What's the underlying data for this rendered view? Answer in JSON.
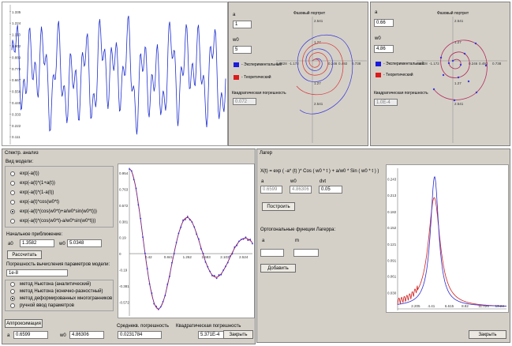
{
  "signal_plot": {
    "y_ticks": [
      "1.335",
      "1.224",
      "1.113",
      "1.002",
      "0.889",
      "0.778",
      "0.667",
      "0.556",
      "0.445",
      "0.333",
      "0.222",
      "0.111"
    ],
    "y_values": [
      1.335,
      1.224,
      1.113,
      1.002,
      0.889,
      0.778,
      0.667,
      0.556,
      0.445,
      0.333,
      0.222,
      0.111
    ],
    "color": "#1f2fd0"
  },
  "phase_panel_1": {
    "a_label": "a",
    "a_value": "1",
    "w0_label": "w0",
    "w0_value": "5",
    "legend_exp": "- Экспериментальный",
    "legend_theory": "- Теоретический",
    "error_label": "Квадратическая погрешность",
    "error_value": "0.072",
    "plot_title": "Фазовый портрет",
    "x_ticks": [
      "0.9328",
      "-1.172",
      "0.246",
      "0.492",
      "0.738"
    ],
    "y_ticks": [
      "2.541",
      "1.27",
      "1.27",
      "2.541"
    ]
  },
  "phase_panel_2": {
    "a_label": "a",
    "a_value": "0.66",
    "w0_label": "w0",
    "w0_value": "4.86",
    "legend_exp": "- Экспериментальный",
    "legend_theory": "- Теоретический",
    "error_label": "Квадратическая погрешность",
    "error_value": "1.0E-4",
    "plot_title": "Фазовый портрет",
    "x_ticks": [
      "0.5328",
      "-1.172",
      "0.246",
      "0.492",
      "0.738"
    ],
    "y_ticks": [
      "2.541",
      "1.27",
      "1.27",
      "2.541"
    ]
  },
  "spectrum_window": {
    "title": "Спектр. анализ",
    "model_group_label": "Вид модели:",
    "models": [
      {
        "label": "exp(-a(t))",
        "selected": false
      },
      {
        "label": "exp(-a(t)*(1+a(t))",
        "selected": false
      },
      {
        "label": "exp(-a(t)*(1-a(t))",
        "selected": false
      },
      {
        "label": "exp(-a(t)*cos(w0*t)",
        "selected": false
      },
      {
        "label": "exp(-a(t)*(cos(w0*t)+a/w0*sin(w0*t)))",
        "selected": true
      },
      {
        "label": "exp(-a(t)*(cos(w0*t)-a/w0*sin(w0*t)))",
        "selected": false
      }
    ],
    "init_label": "Начальное приближение:",
    "a0_label": "a0",
    "a0_value": "1.3582",
    "w0_label": "w0",
    "w0_value": "5.0348",
    "calc_button": "Рассчитать",
    "tolerance_label": "Погрешность вычисления параметров модели:",
    "tolerance_value": "1e-8",
    "methods": [
      {
        "label": "метод Ньютона (аналитический)",
        "selected": false
      },
      {
        "label": "метод Ньютона (конечно-разностный)",
        "selected": false
      },
      {
        "label": "метод деформированных многогранников",
        "selected": true
      },
      {
        "label": "ручной ввод параметров",
        "selected": false
      }
    ],
    "approx_button": "Аппроксимация",
    "a_label": "a",
    "a_value": "0.6599",
    "w0_res_label": "w0",
    "w0_res_value": "4.86306",
    "mean_err_label": "Среднекв. погрешность",
    "mean_err_value": "0.0231784",
    "quad_err_label": "Квадратическая погрешность",
    "quad_err_value": "5.371E-4",
    "close_button": "Закрыть",
    "chart_data": {
      "type": "line",
      "y_ticks": [
        "0.954",
        "0.763",
        "0.572",
        "0.381",
        "0.19",
        "0",
        "-0.19",
        "-0.381",
        "-0.572"
      ],
      "x_ticks": [
        "0.42",
        "0.841",
        "1.262",
        "1.683",
        "2.103",
        "2.524"
      ],
      "ylim": [
        -0.7,
        1.0
      ],
      "xlim": [
        0,
        2.75
      ],
      "series": [
        {
          "color": "#d01c1c"
        },
        {
          "color": "#3030d8"
        }
      ]
    }
  },
  "laguerre_window": {
    "title": "Лагер",
    "formula": "X(t) = exp ( -a* (t) )* Cos ( w0 * t ) + a/w0 * Sin ( w0 * t ) )",
    "a_label": "a",
    "a_value": "0.6599",
    "w0_label": "w0",
    "w0_value": "4.86306",
    "dvt_label": "dvt",
    "dvt_value": "0.05",
    "build_button": "Построить",
    "ortho_label": "Ортогональные функции Лагерра:",
    "fa_label": "a",
    "fm_label": "m",
    "add_button": "Добавить",
    "close_button": "Закрыть",
    "chart_data": {
      "type": "line",
      "y_ticks": [
        "0.243",
        "0.213",
        "0.182",
        "0.152",
        "0.121",
        "0.091",
        "0.061",
        "0.030"
      ],
      "x_ticks": [
        "2.205",
        "4.41",
        "6.615",
        "8.82",
        "11.025",
        "13.23"
      ],
      "ylim": [
        0,
        0.26
      ],
      "xlim": [
        0,
        14.3
      ],
      "series": [
        {
          "color": "#2b2bd0"
        },
        {
          "color": "#d02020"
        }
      ]
    }
  }
}
